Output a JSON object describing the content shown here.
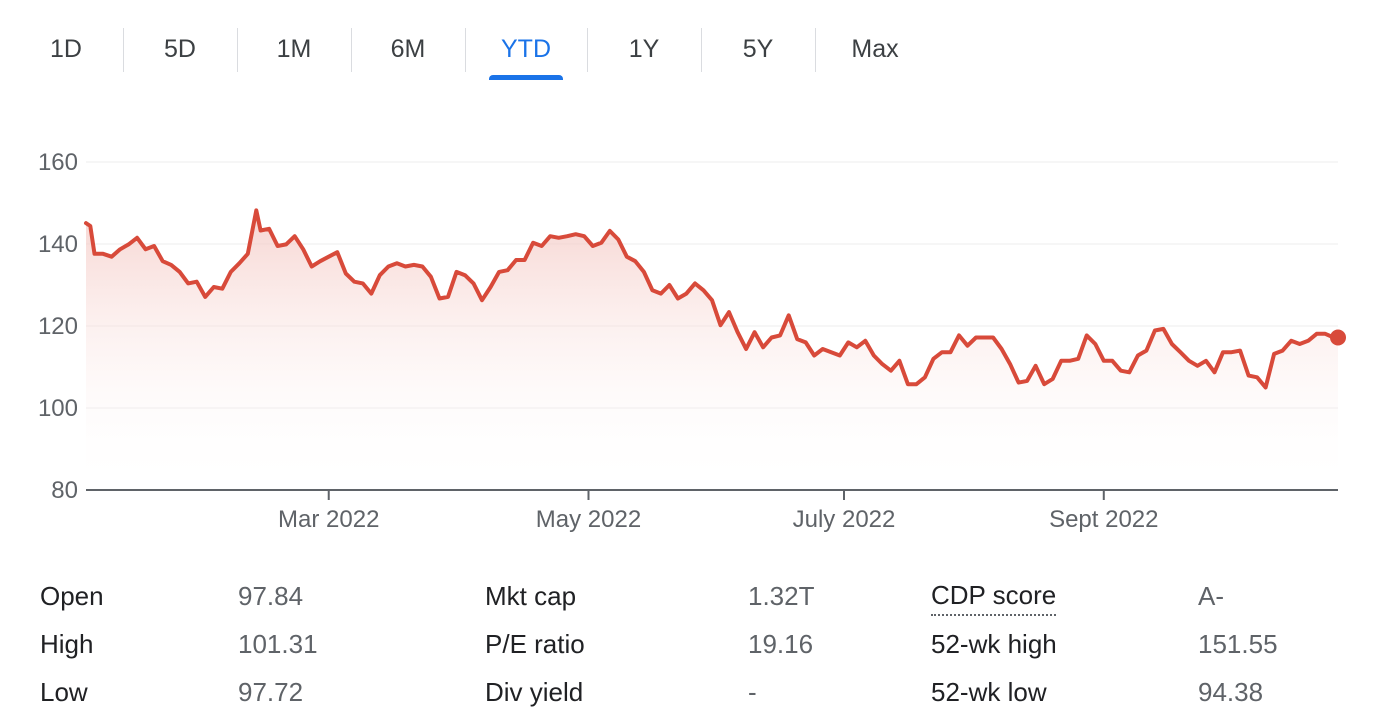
{
  "range_tabs": [
    {
      "label": "1D",
      "active": false
    },
    {
      "label": "5D",
      "active": false
    },
    {
      "label": "1M",
      "active": false
    },
    {
      "label": "6M",
      "active": false
    },
    {
      "label": "YTD",
      "active": true
    },
    {
      "label": "1Y",
      "active": false
    },
    {
      "label": "5Y",
      "active": false
    },
    {
      "label": "Max",
      "active": false
    }
  ],
  "colors": {
    "line": "#d84a3a",
    "fill_top": "#f4c7c2",
    "accent": "#1a73e8"
  },
  "chart_data": {
    "type": "area",
    "title": "",
    "xlabel": "",
    "ylabel": "",
    "ylim": [
      80,
      160
    ],
    "xlim": [
      "2022-01-03",
      "2022-10-24"
    ],
    "yticks": [
      {
        "value": 160,
        "label": "160"
      },
      {
        "value": 140,
        "label": "140"
      },
      {
        "value": 120,
        "label": "120"
      },
      {
        "value": 100,
        "label": "100"
      },
      {
        "value": 80,
        "label": "80"
      }
    ],
    "xticks": [
      {
        "date": "2022-03-01",
        "label": "Mar 2022"
      },
      {
        "date": "2022-05-01",
        "label": "May 2022"
      },
      {
        "date": "2022-06-30",
        "label": "July 2022"
      },
      {
        "date": "2022-08-30",
        "label": "Sept 2022"
      }
    ],
    "grid": true,
    "end_marker": true,
    "series": [
      {
        "points": [
          [
            "2022-01-03",
            145.1
          ],
          [
            "2022-01-04",
            144.4
          ],
          [
            "2022-01-05",
            137.6
          ],
          [
            "2022-01-07",
            137.6
          ],
          [
            "2022-01-09",
            136.9
          ],
          [
            "2022-01-11",
            138.7
          ],
          [
            "2022-01-13",
            139.9
          ],
          [
            "2022-01-15",
            141.5
          ],
          [
            "2022-01-17",
            138.7
          ],
          [
            "2022-01-19",
            139.5
          ],
          [
            "2022-01-21",
            135.8
          ],
          [
            "2022-01-23",
            134.9
          ],
          [
            "2022-01-25",
            133.2
          ],
          [
            "2022-01-27",
            130.4
          ],
          [
            "2022-01-29",
            130.8
          ],
          [
            "2022-01-31",
            127.1
          ],
          [
            "2022-02-02",
            129.5
          ],
          [
            "2022-02-04",
            129.1
          ],
          [
            "2022-02-06",
            133.2
          ],
          [
            "2022-02-08",
            135.3
          ],
          [
            "2022-02-10",
            137.6
          ],
          [
            "2022-02-12",
            148.2
          ],
          [
            "2022-02-13",
            143.3
          ],
          [
            "2022-02-15",
            143.7
          ],
          [
            "2022-02-17",
            139.5
          ],
          [
            "2022-02-19",
            139.9
          ],
          [
            "2022-02-21",
            141.9
          ],
          [
            "2022-02-23",
            138.7
          ],
          [
            "2022-02-25",
            134.5
          ],
          [
            "2022-02-27",
            135.8
          ],
          [
            "2022-03-01",
            136.9
          ],
          [
            "2022-03-03",
            138.0
          ],
          [
            "2022-03-05",
            132.8
          ],
          [
            "2022-03-07",
            130.8
          ],
          [
            "2022-03-09",
            130.4
          ],
          [
            "2022-03-11",
            127.9
          ],
          [
            "2022-03-13",
            132.4
          ],
          [
            "2022-03-15",
            134.5
          ],
          [
            "2022-03-17",
            135.3
          ],
          [
            "2022-03-19",
            134.5
          ],
          [
            "2022-03-21",
            134.9
          ],
          [
            "2022-03-23",
            134.5
          ],
          [
            "2022-03-25",
            132.0
          ],
          [
            "2022-03-27",
            126.7
          ],
          [
            "2022-03-29",
            127.1
          ],
          [
            "2022-03-31",
            133.2
          ],
          [
            "2022-04-02",
            132.4
          ],
          [
            "2022-04-04",
            130.4
          ],
          [
            "2022-04-06",
            126.3
          ],
          [
            "2022-04-08",
            129.5
          ],
          [
            "2022-04-10",
            133.2
          ],
          [
            "2022-04-12",
            133.6
          ],
          [
            "2022-04-14",
            136.1
          ],
          [
            "2022-04-16",
            136.1
          ],
          [
            "2022-04-18",
            140.3
          ],
          [
            "2022-04-20",
            139.5
          ],
          [
            "2022-04-22",
            141.9
          ],
          [
            "2022-04-24",
            141.5
          ],
          [
            "2022-04-26",
            141.9
          ],
          [
            "2022-04-28",
            142.4
          ],
          [
            "2022-04-30",
            141.9
          ],
          [
            "2022-05-02",
            139.5
          ],
          [
            "2022-05-04",
            140.3
          ],
          [
            "2022-05-06",
            143.2
          ],
          [
            "2022-05-08",
            141.1
          ],
          [
            "2022-05-10",
            136.9
          ],
          [
            "2022-05-12",
            135.8
          ],
          [
            "2022-05-14",
            133.2
          ],
          [
            "2022-05-16",
            128.7
          ],
          [
            "2022-05-18",
            127.9
          ],
          [
            "2022-05-20",
            130.0
          ],
          [
            "2022-05-22",
            126.7
          ],
          [
            "2022-05-24",
            127.9
          ],
          [
            "2022-05-26",
            130.4
          ],
          [
            "2022-05-28",
            128.7
          ],
          [
            "2022-05-30",
            126.3
          ],
          [
            "2022-06-01",
            120.2
          ],
          [
            "2022-06-03",
            123.4
          ],
          [
            "2022-06-05",
            118.5
          ],
          [
            "2022-06-07",
            114.4
          ],
          [
            "2022-06-09",
            118.5
          ],
          [
            "2022-06-11",
            114.8
          ],
          [
            "2022-06-13",
            117.2
          ],
          [
            "2022-06-15",
            117.7
          ],
          [
            "2022-06-17",
            122.6
          ],
          [
            "2022-06-19",
            116.8
          ],
          [
            "2022-06-21",
            116.0
          ],
          [
            "2022-06-23",
            112.8
          ],
          [
            "2022-06-25",
            114.4
          ],
          [
            "2022-06-27",
            113.6
          ],
          [
            "2022-06-29",
            112.8
          ],
          [
            "2022-07-01",
            116.0
          ],
          [
            "2022-07-03",
            114.8
          ],
          [
            "2022-07-05",
            116.4
          ],
          [
            "2022-07-07",
            112.8
          ],
          [
            "2022-07-09",
            110.7
          ],
          [
            "2022-07-11",
            109.1
          ],
          [
            "2022-07-13",
            111.5
          ],
          [
            "2022-07-15",
            105.8
          ],
          [
            "2022-07-17",
            105.8
          ],
          [
            "2022-07-19",
            107.5
          ],
          [
            "2022-07-21",
            112.0
          ],
          [
            "2022-07-23",
            113.6
          ],
          [
            "2022-07-25",
            113.6
          ],
          [
            "2022-07-27",
            117.7
          ],
          [
            "2022-07-29",
            115.2
          ],
          [
            "2022-07-31",
            117.2
          ],
          [
            "2022-08-02",
            117.2
          ],
          [
            "2022-08-04",
            117.2
          ],
          [
            "2022-08-06",
            114.4
          ],
          [
            "2022-08-08",
            110.7
          ],
          [
            "2022-08-10",
            106.2
          ],
          [
            "2022-08-12",
            106.6
          ],
          [
            "2022-08-14",
            110.3
          ],
          [
            "2022-08-16",
            105.8
          ],
          [
            "2022-08-18",
            107.1
          ],
          [
            "2022-08-20",
            111.5
          ],
          [
            "2022-08-22",
            111.5
          ],
          [
            "2022-08-24",
            112.0
          ],
          [
            "2022-08-26",
            117.7
          ],
          [
            "2022-08-28",
            115.6
          ],
          [
            "2022-08-30",
            111.5
          ],
          [
            "2022-09-01",
            111.5
          ],
          [
            "2022-09-03",
            109.1
          ],
          [
            "2022-09-05",
            108.7
          ],
          [
            "2022-09-07",
            112.8
          ],
          [
            "2022-09-09",
            114.0
          ],
          [
            "2022-09-11",
            118.9
          ],
          [
            "2022-09-13",
            119.3
          ],
          [
            "2022-09-15",
            115.6
          ],
          [
            "2022-09-17",
            113.6
          ],
          [
            "2022-09-19",
            111.5
          ],
          [
            "2022-09-21",
            110.3
          ],
          [
            "2022-09-23",
            111.5
          ],
          [
            "2022-09-25",
            108.7
          ],
          [
            "2022-09-27",
            113.6
          ],
          [
            "2022-09-29",
            113.6
          ],
          [
            "2022-10-01",
            114.0
          ],
          [
            "2022-10-03",
            107.9
          ],
          [
            "2022-10-05",
            107.5
          ],
          [
            "2022-10-07",
            105.0
          ],
          [
            "2022-10-09",
            113.2
          ],
          [
            "2022-10-11",
            114.0
          ],
          [
            "2022-10-13",
            116.4
          ],
          [
            "2022-10-15",
            115.6
          ],
          [
            "2022-10-17",
            116.4
          ],
          [
            "2022-10-19",
            118.1
          ],
          [
            "2022-10-21",
            118.1
          ],
          [
            "2022-10-23",
            117.2
          ],
          [
            "2022-10-24",
            117.2
          ]
        ]
      }
    ]
  },
  "stats": [
    [
      {
        "label": "Open",
        "value": "97.84"
      },
      {
        "label": "High",
        "value": "101.31"
      },
      {
        "label": "Low",
        "value": "97.72"
      }
    ],
    [
      {
        "label": "Mkt cap",
        "value": "1.32T"
      },
      {
        "label": "P/E ratio",
        "value": "19.16"
      },
      {
        "label": "Div yield",
        "value": "-"
      }
    ],
    [
      {
        "label": "CDP score",
        "value": "A-",
        "dotted": true
      },
      {
        "label": "52-wk high",
        "value": "151.55"
      },
      {
        "label": "52-wk low",
        "value": "94.38"
      }
    ]
  ]
}
